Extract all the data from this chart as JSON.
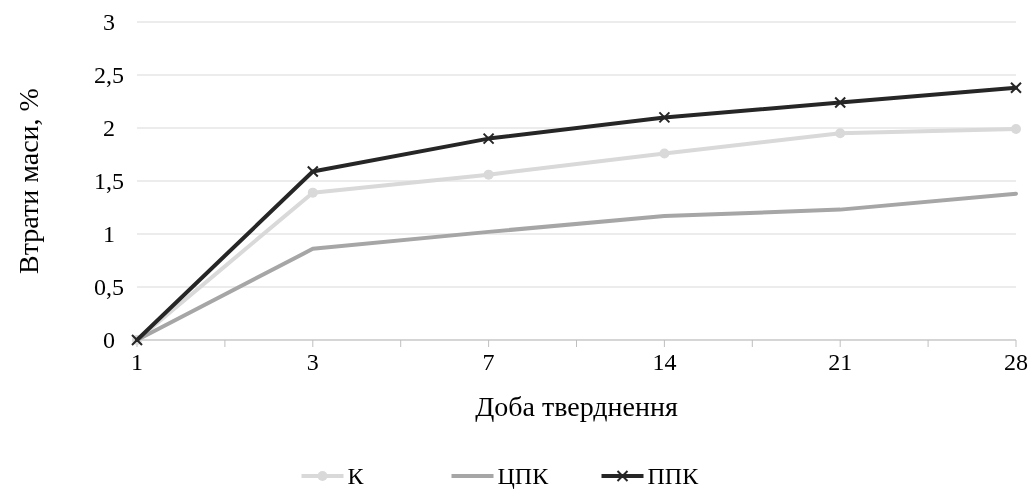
{
  "chart_data": {
    "type": "line",
    "xlabel": "Доба тверднення",
    "ylabel": "Втрати маси, %",
    "categories": [
      "1",
      "3",
      "7",
      "14",
      "21",
      "28"
    ],
    "series": [
      {
        "name": "К",
        "color": "#d9d9d9",
        "marker": "circle",
        "values": [
          0,
          1.39,
          1.56,
          1.76,
          1.95,
          1.99
        ]
      },
      {
        "name": "ЦПК",
        "color": "#a6a6a6",
        "marker": "none",
        "values": [
          0,
          0.86,
          1.02,
          1.17,
          1.23,
          1.38
        ]
      },
      {
        "name": "ППК",
        "color": "#262626",
        "marker": "cross",
        "values": [
          0,
          1.59,
          1.9,
          2.1,
          2.24,
          2.38
        ]
      }
    ],
    "ylim": [
      0,
      3
    ],
    "yticks": [
      {
        "value": 0,
        "label": "0"
      },
      {
        "value": 0.5,
        "label": "0,5"
      },
      {
        "value": 1,
        "label": "1"
      },
      {
        "value": 1.5,
        "label": "1,5"
      },
      {
        "value": 2,
        "label": "2"
      },
      {
        "value": 2.5,
        "label": "2,5"
      },
      {
        "value": 3,
        "label": "3"
      }
    ],
    "grid": "y",
    "legend": "bottom",
    "line_style": "solid"
  }
}
